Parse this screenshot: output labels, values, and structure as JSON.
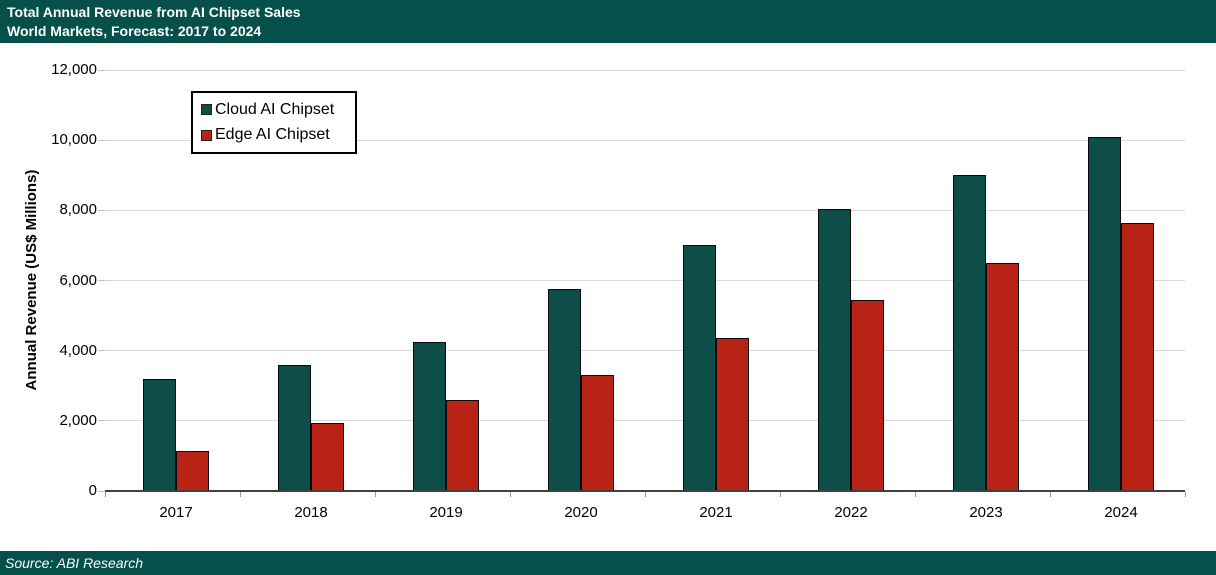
{
  "header": {
    "title_line1": "Total Annual Revenue from AI Chipset Sales",
    "title_line2": "World Markets, Forecast: 2017 to 2024"
  },
  "footer": {
    "source": "Source: ABI Research"
  },
  "colors": {
    "banner_background": "#05504a",
    "banner_text": "#ffffff",
    "cloud_series": "#0d4f48",
    "edge_series": "#b82315",
    "gridline": "#d9d9d9",
    "axis_line": "#404040"
  },
  "chart_data": {
    "type": "bar",
    "title": "Total Annual Revenue from AI Chipset Sales",
    "subtitle": "World Markets, Forecast: 2017 to 2024",
    "categories": [
      "2017",
      "2018",
      "2019",
      "2020",
      "2021",
      "2022",
      "2023",
      "2024"
    ],
    "series": [
      {
        "name": "Cloud AI Chipset",
        "color": "#0d4f48",
        "values": [
          3200,
          3600,
          4250,
          5750,
          7000,
          8050,
          9000,
          10100
        ]
      },
      {
        "name": "Edge AI Chipset",
        "color": "#b82315",
        "values": [
          1150,
          1950,
          2600,
          3300,
          4350,
          5450,
          6500,
          7650
        ]
      }
    ],
    "xlabel": "",
    "ylabel": "Annual Revenue (US$ Millions)",
    "ylim": [
      0,
      12000
    ],
    "ytick_interval": 2000,
    "ytick_labels": [
      "0",
      "2,000",
      "4,000",
      "6,000",
      "8,000",
      "10,000",
      "12,000"
    ],
    "grid": true,
    "legend_position": "top-left-inside",
    "source": "ABI Research"
  }
}
